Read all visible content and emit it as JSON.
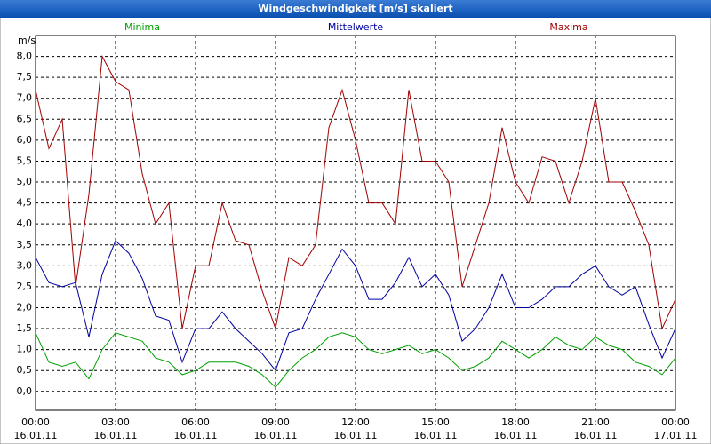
{
  "chart_data": {
    "type": "line",
    "title": "Windgeschwindigkeit [m/s] skaliert",
    "ylabel": "m/s",
    "x": [
      0,
      0.5,
      1,
      1.5,
      2,
      2.5,
      3,
      3.5,
      4,
      4.5,
      5,
      5.5,
      6,
      6.5,
      7,
      7.5,
      8,
      8.5,
      9,
      9.5,
      10,
      10.5,
      11,
      11.5,
      12,
      12.5,
      13,
      13.5,
      14,
      14.5,
      15,
      15.5,
      16,
      16.5,
      17,
      17.5,
      18,
      18.5,
      19,
      19.5,
      20,
      20.5,
      21,
      21.5,
      22,
      22.5,
      23,
      23.5,
      24
    ],
    "series": [
      {
        "name": "Minima",
        "color": "#00a000",
        "values": [
          1.4,
          0.7,
          0.6,
          0.7,
          0.3,
          1.0,
          1.4,
          1.3,
          1.2,
          0.8,
          0.7,
          0.4,
          0.5,
          0.7,
          0.7,
          0.7,
          0.6,
          0.4,
          0.1,
          0.5,
          0.8,
          1.0,
          1.3,
          1.4,
          1.3,
          1.0,
          0.9,
          1.0,
          1.1,
          0.9,
          1.0,
          0.8,
          0.5,
          0.6,
          0.8,
          1.2,
          1.0,
          0.8,
          1.0,
          1.3,
          1.1,
          1.0,
          1.3,
          1.1,
          1.0,
          0.7,
          0.6,
          0.4,
          0.8
        ]
      },
      {
        "name": "Mittelwerte",
        "color": "#0000a0",
        "values": [
          3.2,
          2.6,
          2.5,
          2.6,
          1.3,
          2.8,
          3.6,
          3.3,
          2.7,
          1.8,
          1.7,
          0.7,
          1.5,
          1.5,
          1.9,
          1.5,
          1.2,
          0.9,
          0.5,
          1.4,
          1.5,
          2.2,
          2.8,
          3.4,
          3.0,
          2.2,
          2.2,
          2.6,
          3.2,
          2.5,
          2.8,
          2.3,
          1.2,
          1.5,
          2.0,
          2.8,
          2.0,
          2.0,
          2.2,
          2.5,
          2.5,
          2.8,
          3.0,
          2.5,
          2.3,
          2.5,
          1.6,
          0.8,
          1.5
        ]
      },
      {
        "name": "Maxima",
        "color": "#a00000",
        "values": [
          7.2,
          5.8,
          6.5,
          2.5,
          4.7,
          8.0,
          7.4,
          7.2,
          5.2,
          4.0,
          4.5,
          1.5,
          3.0,
          3.0,
          4.5,
          3.6,
          3.5,
          2.4,
          1.5,
          3.2,
          3.0,
          3.5,
          6.3,
          7.2,
          6.0,
          4.5,
          4.5,
          4.0,
          7.2,
          5.5,
          5.5,
          5.0,
          2.5,
          3.5,
          4.5,
          6.3,
          5.0,
          4.5,
          5.6,
          5.5,
          4.5,
          5.5,
          7.0,
          5.0,
          5.0,
          4.3,
          3.5,
          1.5,
          2.2
        ]
      }
    ],
    "xlim": [
      0,
      24
    ],
    "xticks": [
      {
        "value": 0,
        "label": "00:00",
        "date": "16.01.11"
      },
      {
        "value": 3,
        "label": "03:00",
        "date": "16.01.11"
      },
      {
        "value": 6,
        "label": "06:00",
        "date": "16.01.11"
      },
      {
        "value": 9,
        "label": "09:00",
        "date": "16.01.11"
      },
      {
        "value": 12,
        "label": "12:00",
        "date": "16.01.11"
      },
      {
        "value": 15,
        "label": "15:00",
        "date": "16.01.11"
      },
      {
        "value": 18,
        "label": "18:00",
        "date": "16.01.11"
      },
      {
        "value": 21,
        "label": "21:00",
        "date": "16.01.11"
      },
      {
        "value": 24,
        "label": "00:00",
        "date": "17.01.11"
      }
    ],
    "ylim": [
      -0.45,
      8.5
    ],
    "yticks": [
      {
        "value": 0,
        "label": "0,0"
      },
      {
        "value": 0.5,
        "label": "0,5"
      },
      {
        "value": 1,
        "label": "1,0"
      },
      {
        "value": 1.5,
        "label": "1,5"
      },
      {
        "value": 2,
        "label": "2,0"
      },
      {
        "value": 2.5,
        "label": "2,5"
      },
      {
        "value": 3,
        "label": "3,0"
      },
      {
        "value": 3.5,
        "label": "3,5"
      },
      {
        "value": 4,
        "label": "4,0"
      },
      {
        "value": 4.5,
        "label": "4,5"
      },
      {
        "value": 5,
        "label": "5,0"
      },
      {
        "value": 5.5,
        "label": "5,5"
      },
      {
        "value": 6,
        "label": "6,0"
      },
      {
        "value": 6.5,
        "label": "6,5"
      },
      {
        "value": 7,
        "label": "7,0"
      },
      {
        "value": 7.5,
        "label": "7,5"
      },
      {
        "value": 8,
        "label": "8,0"
      }
    ],
    "grid": true
  }
}
